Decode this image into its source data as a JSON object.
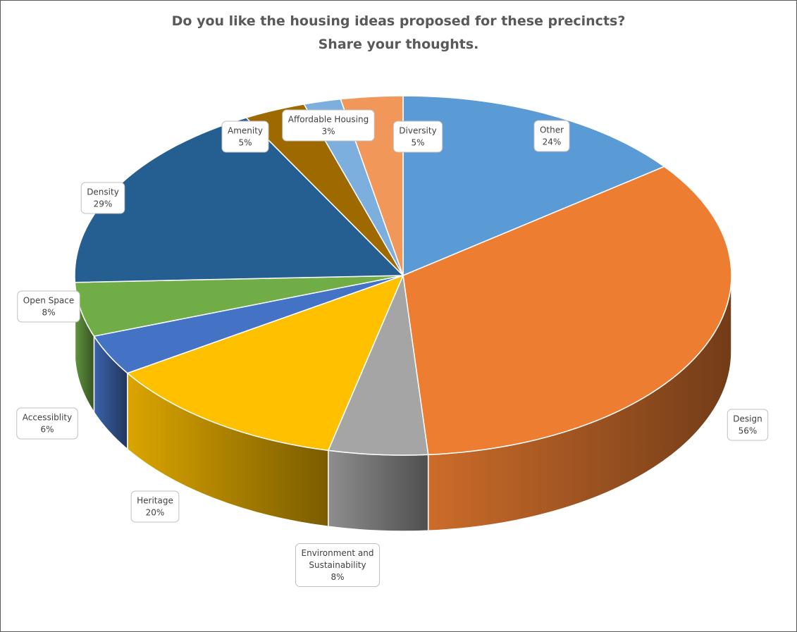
{
  "chart_data": {
    "type": "pie",
    "style": "3d-pie",
    "title": "Do you like the housing ideas proposed for these precincts? Share your thoughts.",
    "title_lines": [
      "Do you like the housing ideas proposed for these precincts?",
      "Share your thoughts."
    ],
    "legend": "none (data callouts on slices)",
    "series": [
      {
        "values": [
          24,
          56,
          8,
          20,
          6,
          8,
          29,
          5,
          3,
          5
        ],
        "categories": [
          "Other",
          "Design",
          "Environment and Sustainability",
          "Heritage",
          "Accessiblity",
          "Open Space",
          "Density",
          "Amenity",
          "Affordable Housing",
          "Diversity"
        ]
      }
    ],
    "slices": [
      {
        "category": "Other",
        "label_lines": [
          "Other"
        ],
        "percent_label": "24%",
        "value": 24,
        "color": "#5B9BD5"
      },
      {
        "category": "Design",
        "label_lines": [
          "Design"
        ],
        "percent_label": "56%",
        "value": 56,
        "color": "#ED7D31"
      },
      {
        "category": "Environment and Sustainability",
        "label_lines": [
          "Environment and",
          "Sustainability"
        ],
        "percent_label": "8%",
        "value": 8,
        "color": "#A5A5A5"
      },
      {
        "category": "Heritage",
        "label_lines": [
          "Heritage"
        ],
        "percent_label": "20%",
        "value": 20,
        "color": "#FFC000"
      },
      {
        "category": "Accessiblity",
        "label_lines": [
          "Accessiblity"
        ],
        "percent_label": "6%",
        "value": 6,
        "color": "#4472C4"
      },
      {
        "category": "Open Space",
        "label_lines": [
          "Open Space"
        ],
        "percent_label": "8%",
        "value": 8,
        "color": "#70AD47"
      },
      {
        "category": "Density",
        "label_lines": [
          "Density"
        ],
        "percent_label": "29%",
        "value": 29,
        "color": "#255E91"
      },
      {
        "category": "Amenity",
        "label_lines": [
          "Amenity"
        ],
        "percent_label": "5%",
        "value": 5,
        "color": "#9E6A00"
      },
      {
        "category": "Affordable Housing",
        "label_lines": [
          "Affordable Housing"
        ],
        "percent_label": "3%",
        "value": 3,
        "color": "#7CAFDD"
      },
      {
        "category": "Diversity",
        "label_lines": [
          "Diversity"
        ],
        "percent_label": "5%",
        "value": 5,
        "color": "#F1975A"
      }
    ]
  }
}
